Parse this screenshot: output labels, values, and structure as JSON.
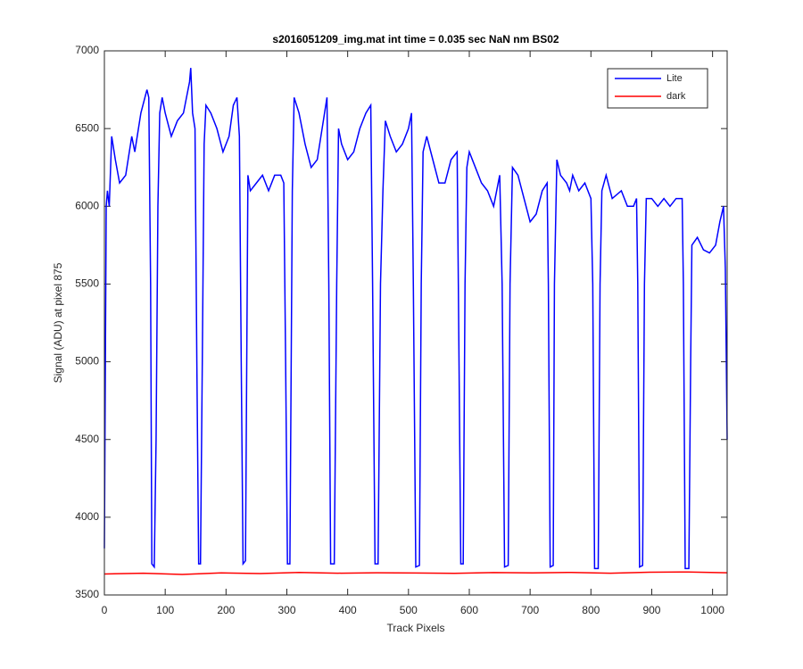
{
  "chart_data": {
    "type": "line",
    "title": "s2016051209_img.mat int time = 0.035 sec  NaN nm BS02",
    "xlabel": "Track Pixels",
    "ylabel": "Signal (ADU) at pixel 875",
    "xlim": [
      0,
      1024
    ],
    "ylim": [
      3500,
      7000
    ],
    "xticks": [
      0,
      100,
      200,
      300,
      400,
      500,
      600,
      700,
      800,
      900,
      1000
    ],
    "yticks": [
      3500,
      4000,
      4500,
      5000,
      5500,
      6000,
      6500,
      7000
    ],
    "legend": "northeast",
    "series": [
      {
        "name": "Lite",
        "color": "#0000ff",
        "x": [
          0,
          3,
          5,
          8,
          12,
          18,
          25,
          35,
          45,
          50,
          60,
          70,
          73,
          76,
          78,
          82,
          85,
          88,
          91,
          95,
          100,
          110,
          120,
          130,
          140,
          142,
          145,
          149,
          152,
          155,
          158,
          161,
          164,
          167,
          175,
          185,
          195,
          205,
          212,
          218,
          222,
          225,
          228,
          232,
          236,
          240,
          250,
          260,
          270,
          280,
          290,
          295,
          298,
          301,
          305,
          309,
          312,
          320,
          330,
          340,
          350,
          360,
          366,
          369,
          372,
          378,
          382,
          385,
          390,
          400,
          410,
          420,
          430,
          438,
          441,
          445,
          450,
          454,
          458,
          462,
          470,
          480,
          490,
          500,
          505,
          508,
          512,
          518,
          521,
          524,
          530,
          540,
          550,
          560,
          570,
          580,
          582,
          586,
          590,
          593,
          596,
          600,
          610,
          620,
          630,
          640,
          650,
          654,
          658,
          664,
          667,
          671,
          680,
          690,
          700,
          710,
          720,
          728,
          730,
          733,
          738,
          740,
          744,
          750,
          760,
          765,
          770,
          780,
          790,
          800,
          803,
          806,
          812,
          815,
          818,
          825,
          835,
          850,
          860,
          870,
          875,
          877,
          880,
          885,
          888,
          891,
          900,
          910,
          920,
          930,
          940,
          950,
          952,
          955,
          961,
          964,
          966,
          975,
          985,
          995,
          1005,
          1012,
          1018,
          1021,
          1024
        ],
        "values": [
          3800,
          6000,
          6100,
          6000,
          6450,
          6300,
          6150,
          6200,
          6450,
          6350,
          6600,
          6750,
          6700,
          5500,
          3700,
          3680,
          4500,
          6000,
          6600,
          6700,
          6600,
          6450,
          6550,
          6600,
          6800,
          6890,
          6600,
          6500,
          5000,
          3700,
          3700,
          5000,
          6400,
          6650,
          6600,
          6500,
          6350,
          6450,
          6650,
          6700,
          6450,
          5000,
          3700,
          3720,
          6200,
          6100,
          6150,
          6200,
          6100,
          6200,
          6200,
          6150,
          5000,
          3700,
          3700,
          6100,
          6700,
          6600,
          6400,
          6250,
          6300,
          6550,
          6700,
          5500,
          3700,
          3700,
          5500,
          6500,
          6400,
          6300,
          6350,
          6500,
          6600,
          6650,
          5500,
          3700,
          3700,
          5500,
          6100,
          6550,
          6450,
          6350,
          6400,
          6500,
          6600,
          5500,
          3680,
          3690,
          5500,
          6350,
          6450,
          6300,
          6150,
          6150,
          6300,
          6350,
          5500,
          3700,
          3700,
          5500,
          6250,
          6350,
          6250,
          6150,
          6100,
          6000,
          6200,
          5500,
          3680,
          3690,
          5500,
          6250,
          6200,
          6050,
          5900,
          5950,
          6100,
          6150,
          5500,
          3680,
          3690,
          5500,
          6300,
          6200,
          6150,
          6100,
          6200,
          6100,
          6150,
          6050,
          5500,
          3670,
          3670,
          5500,
          6100,
          6200,
          6050,
          6100,
          6000,
          6000,
          6050,
          5500,
          3680,
          3690,
          5500,
          6050,
          6050,
          6000,
          6050,
          6000,
          6050,
          6050,
          5500,
          3670,
          3670,
          5000,
          5750,
          5800,
          5720,
          5700,
          5750,
          5900,
          6000,
          5600,
          4500
        ]
      },
      {
        "name": "dark",
        "color": "#ff0000",
        "x": [
          0,
          64,
          128,
          192,
          256,
          320,
          384,
          448,
          512,
          576,
          640,
          704,
          768,
          832,
          896,
          960,
          1024
        ],
        "values": [
          3635,
          3640,
          3632,
          3642,
          3638,
          3645,
          3640,
          3643,
          3641,
          3639,
          3644,
          3642,
          3645,
          3640,
          3646,
          3648,
          3643
        ]
      }
    ]
  }
}
